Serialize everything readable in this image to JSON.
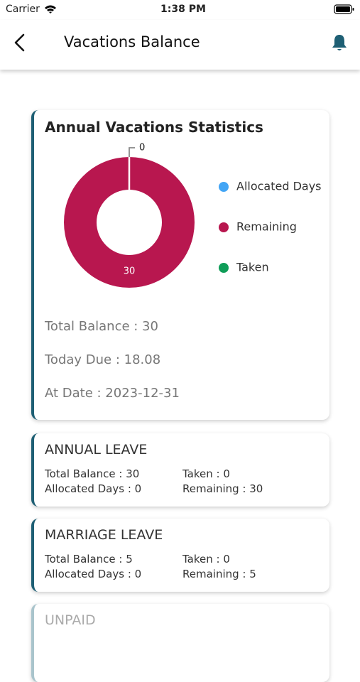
{
  "status_bar": {
    "carrier": "Carrier",
    "time": "1:38 PM"
  },
  "header": {
    "title": "Vacations Balance"
  },
  "stats_card": {
    "title": "Annual Vacations Statistics",
    "chart": {
      "type": "pie",
      "donut": true,
      "categories": [
        "Allocated Days",
        "Remaining",
        "Taken"
      ],
      "values": [
        0,
        30,
        0
      ],
      "colors": [
        "#42a5f5",
        "#b8174f",
        "#0f9d58"
      ]
    },
    "lines": [
      "Total Balance : 30",
      "Today Due : 18.08",
      "At Date : 2023-12-31"
    ]
  },
  "leave_cards": [
    {
      "title": "ANNUAL LEAVE",
      "fields": [
        "Total Balance : 30",
        "Taken : 0",
        "Allocated Days : 0",
        "Remaining : 30"
      ]
    },
    {
      "title": "MARRIAGE LEAVE",
      "fields": [
        "Total Balance : 5",
        "Taken : 0",
        "Allocated Days : 0",
        "Remaining : 5"
      ]
    },
    {
      "title": "UNPAID",
      "fields": []
    }
  ]
}
